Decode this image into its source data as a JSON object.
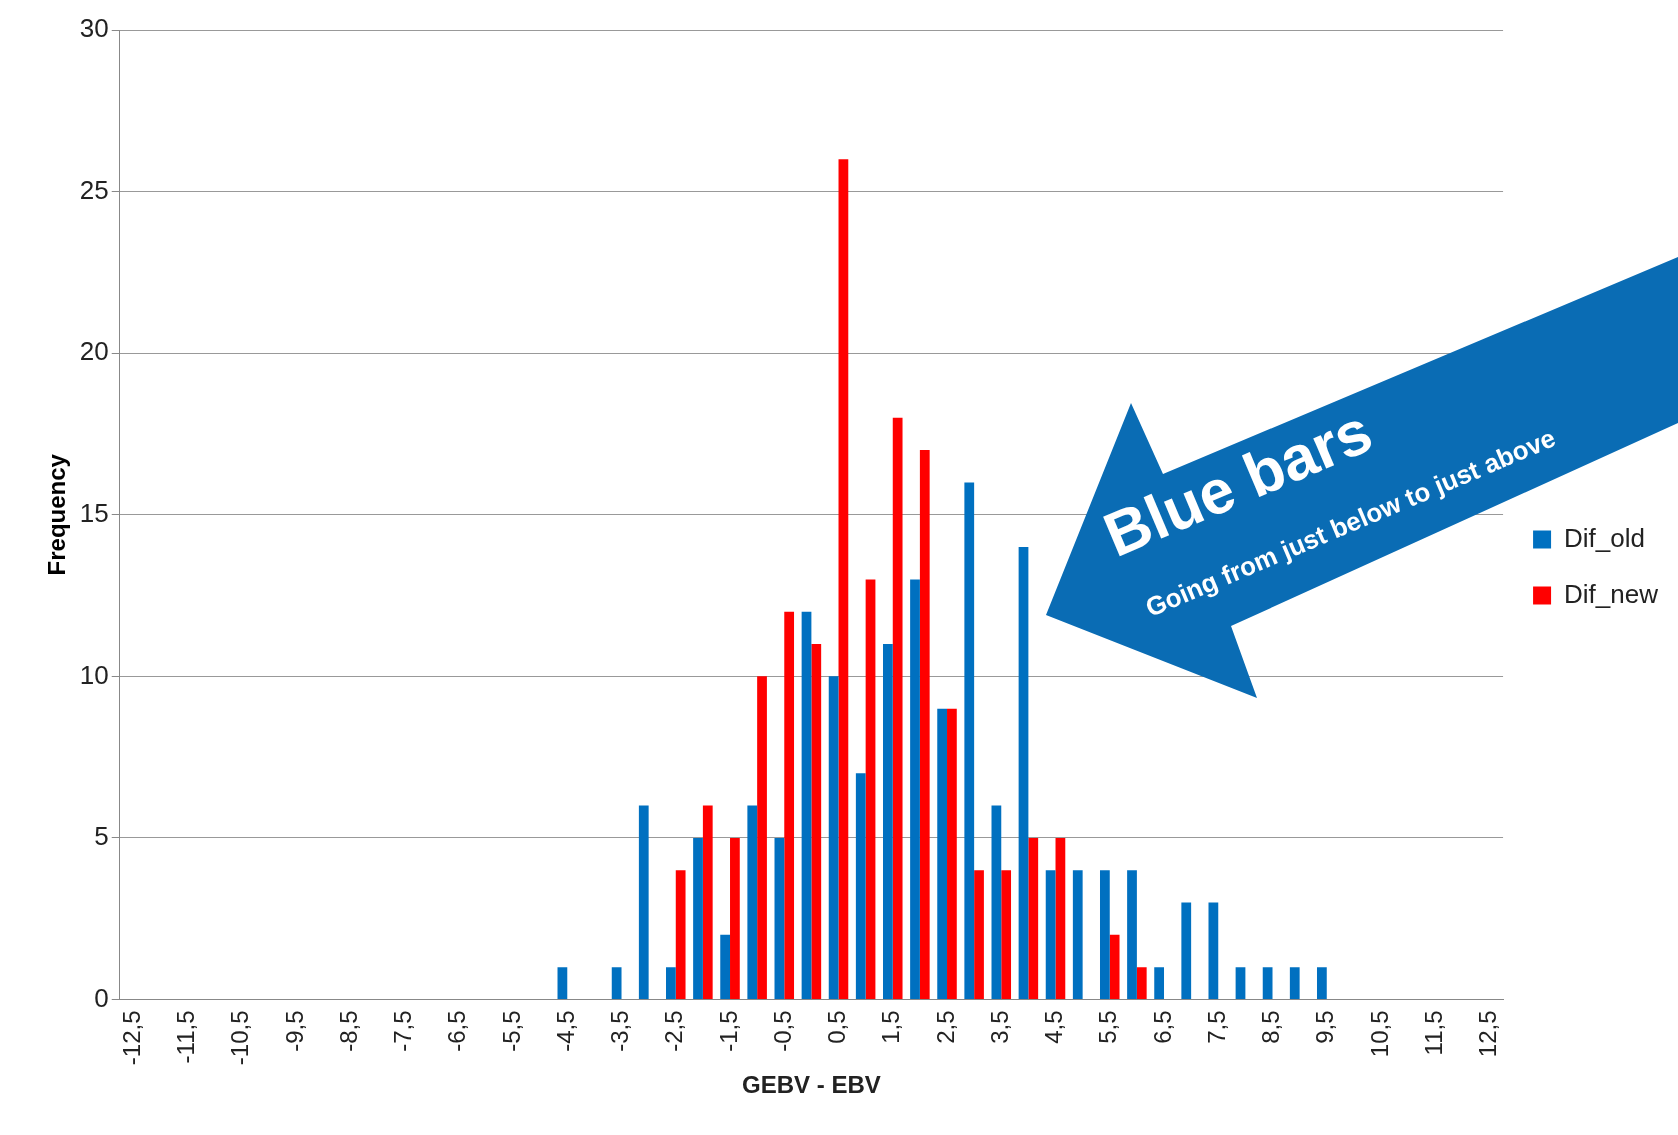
{
  "chart_data": {
    "type": "bar",
    "xlabel": "GEBV - EBV",
    "ylabel": "Frequency",
    "categories": [
      "-12,5",
      null,
      "-11,5",
      null,
      "-10,5",
      null,
      "-9,5",
      null,
      "-8,5",
      null,
      "-7,5",
      null,
      "-6,5",
      null,
      "-5,5",
      null,
      "-4,5",
      null,
      "-3,5",
      null,
      "-2,5",
      null,
      "-1,5",
      null,
      "-0,5",
      null,
      "0,5",
      null,
      "1,5",
      null,
      "2,5",
      null,
      "3,5",
      null,
      "4,5",
      null,
      "5,5",
      null,
      "6,5",
      null,
      "7,5",
      null,
      "8,5",
      null,
      "9,5",
      null,
      "10,5",
      null,
      "11,5",
      null,
      "12,5"
    ],
    "series": [
      {
        "name": "Dif_old",
        "color": "#0070c0",
        "values": [
          0,
          0,
          0,
          0,
          0,
          0,
          0,
          0,
          0,
          0,
          0,
          0,
          0,
          0,
          0,
          0,
          1,
          0,
          1,
          6,
          1,
          5,
          2,
          6,
          5,
          12,
          10,
          7,
          11,
          13,
          9,
          16,
          6,
          14,
          4,
          4,
          4,
          4,
          1,
          3,
          3,
          1,
          1,
          1,
          1,
          0,
          0,
          0,
          0,
          0,
          0
        ]
      },
      {
        "name": "Dif_new",
        "color": "#ff0000",
        "values": [
          0,
          0,
          0,
          0,
          0,
          0,
          0,
          0,
          0,
          0,
          0,
          0,
          0,
          0,
          0,
          0,
          0,
          0,
          0,
          0,
          4,
          6,
          5,
          10,
          12,
          11,
          26,
          13,
          18,
          17,
          9,
          4,
          4,
          5,
          5,
          0,
          2,
          1,
          0,
          0,
          0,
          0,
          0,
          0,
          0,
          0,
          0,
          0,
          0,
          0,
          0
        ]
      }
    ],
    "ylim": [
      0,
      30
    ],
    "yticks": [
      0,
      5,
      10,
      15,
      20,
      25,
      30
    ],
    "grid": "y",
    "legend": "right",
    "annotations": [
      "Blue bars",
      "Going from just below to just above"
    ]
  }
}
